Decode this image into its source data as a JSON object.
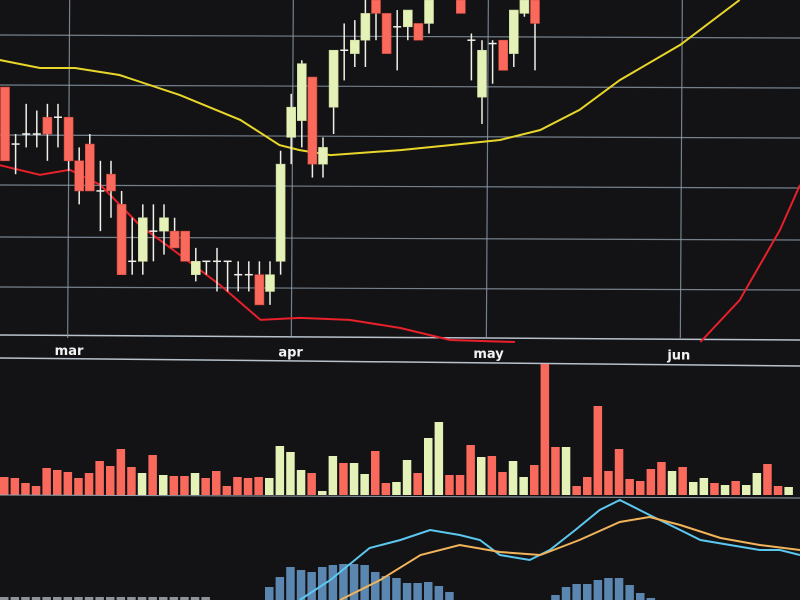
{
  "chart_data": [
    {
      "type": "candlestick",
      "panel": "price",
      "x_tick_labels": [
        {
          "label": "mar",
          "index": 6.1
        },
        {
          "label": "apr",
          "index": 27.2
        },
        {
          "label": "may",
          "index": 45.6
        },
        {
          "label": "jun",
          "index": 63.9
        }
      ],
      "ylim": [
        0,
        100
      ],
      "grid": true,
      "colors": {
        "up": "#e4f2b8",
        "down": "#f96a5c",
        "ma_slow": "#e8d62a",
        "ma_fast": "#e8202a",
        "grid": "#8d9caa",
        "background": "#131315"
      },
      "candles_ohlc": [
        [
          74,
          74,
          52,
          52
        ],
        [
          57,
          60,
          48,
          57
        ],
        [
          60,
          69,
          56,
          60
        ],
        [
          60,
          67,
          56,
          60
        ],
        [
          65,
          69,
          52,
          60
        ],
        [
          65,
          69,
          56,
          65
        ],
        [
          65,
          65,
          49,
          52
        ],
        [
          52,
          56,
          39,
          43
        ],
        [
          57,
          60,
          43,
          43
        ],
        [
          43,
          52,
          31,
          43
        ],
        [
          48,
          52,
          35,
          43
        ],
        [
          39,
          43,
          18,
          18
        ],
        [
          22,
          35,
          18,
          22
        ],
        [
          22,
          39,
          18,
          35
        ],
        [
          31,
          39,
          22,
          31
        ],
        [
          31,
          39,
          24,
          35
        ],
        [
          31,
          35,
          26,
          26
        ],
        [
          31,
          31,
          22,
          22
        ],
        [
          18,
          26,
          16,
          22
        ],
        [
          22,
          22,
          18,
          22
        ],
        [
          22,
          26,
          13,
          22
        ],
        [
          22,
          22,
          13,
          22
        ],
        [
          18,
          22,
          13,
          18
        ],
        [
          18,
          22,
          13,
          18
        ],
        [
          18,
          22,
          9,
          9
        ],
        [
          13,
          22,
          9,
          18
        ],
        [
          22,
          55,
          18,
          51
        ],
        [
          59,
          72,
          51,
          68
        ],
        [
          64,
          82,
          56,
          81
        ],
        [
          77,
          77,
          47,
          51
        ],
        [
          51,
          59,
          47,
          56
        ],
        [
          68,
          85,
          60,
          85
        ],
        [
          85,
          93,
          76,
          85
        ],
        [
          84,
          94,
          80,
          88
        ],
        [
          88,
          100,
          80,
          96
        ],
        [
          100,
          100,
          88,
          96
        ],
        [
          96,
          96,
          84,
          84
        ],
        [
          92,
          97,
          79,
          92
        ],
        [
          92,
          97,
          88,
          97
        ],
        [
          93,
          93,
          88,
          88
        ],
        [
          93,
          100,
          90,
          100
        ],
        [
          104,
          106,
          101,
          104
        ],
        [
          104,
          106,
          101,
          102
        ],
        [
          100,
          103,
          96,
          96
        ],
        [
          88,
          90,
          76,
          88
        ],
        [
          71,
          88,
          63,
          85
        ],
        [
          87,
          88,
          75,
          87
        ],
        [
          88,
          88,
          79,
          79
        ],
        [
          84,
          97,
          80,
          97
        ],
        [
          96,
          103,
          95,
          100
        ],
        [
          100,
          103,
          79,
          93
        ]
      ],
      "ma_slow": [
        [
          -0.5,
          82.1
        ],
        [
          3.3,
          79.7
        ],
        [
          6.6,
          79.7
        ],
        [
          10.8,
          77.6
        ],
        [
          16.5,
          71.6
        ],
        [
          22.2,
          64.2
        ],
        [
          25.9,
          56.7
        ],
        [
          27.8,
          55.2
        ],
        [
          30.7,
          53.7
        ],
        [
          37.3,
          55.2
        ],
        [
          42,
          56.7
        ],
        [
          46.7,
          58.2
        ],
        [
          50.5,
          61.2
        ],
        [
          54.2,
          67.2
        ],
        [
          58,
          76.1
        ],
        [
          63.7,
          86.6
        ],
        [
          69.3,
          100
        ]
      ],
      "ma_fast": [
        [
          [
            -0.5,
            50.7
          ],
          [
            3.3,
            47.8
          ],
          [
            6.1,
            49.3
          ],
          [
            9,
            44.8
          ],
          [
            12.7,
            32.8
          ],
          [
            16.5,
            23.9
          ],
          [
            20.3,
            14.9
          ],
          [
            24.1,
            4.5
          ],
          [
            27.8,
            5.1
          ],
          [
            32.5,
            4.5
          ],
          [
            37.3,
            2.1
          ],
          [
            42,
            -1.5
          ],
          [
            48.1,
            -2.1
          ]
        ],
        [
          [
            65.6,
            -2.1
          ],
          [
            69.3,
            10.4
          ],
          [
            73.1,
            31.3
          ],
          [
            75,
            44.8
          ]
        ]
      ]
    },
    {
      "type": "bar",
      "panel": "volume",
      "values": [
        180,
        170,
        120,
        90,
        270,
        250,
        230,
        170,
        220,
        340,
        290,
        460,
        280,
        220,
        400,
        200,
        190,
        190,
        220,
        170,
        240,
        90,
        180,
        170,
        180,
        170,
        490,
        430,
        250,
        220,
        40,
        390,
        320,
        320,
        210,
        440,
        120,
        130,
        350,
        220,
        570,
        730,
        200,
        200,
        500,
        380,
        390,
        230,
        340,
        180,
        300,
        1350,
        480,
        480,
        90,
        180,
        890,
        240,
        460,
        160,
        140,
        260,
        330,
        240,
        280,
        130,
        170,
        120,
        100,
        140,
        100,
        220,
        310,
        90,
        80
      ],
      "direction": "rrrrrrrrrrrrrgrgrrgrrrrrrggggrggrggrrggrggrrrgrrggrrrgrrrrrrrrrgrggrgrggrrg",
      "ylim": [
        0,
        1400
      ]
    },
    {
      "type": "line",
      "panel": "macd",
      "series": [
        {
          "color": "#5cc8f0",
          "points": [
            [
              27.8,
              0
            ],
            [
              30.7,
              2
            ],
            [
              34.4,
              5.2
            ],
            [
              37.3,
              6
            ],
            [
              40.1,
              7
            ],
            [
              42.9,
              6.5
            ],
            [
              44.8,
              6
            ],
            [
              46.7,
              4.5
            ],
            [
              49.5,
              4
            ],
            [
              51.4,
              5
            ],
            [
              53.8,
              7
            ],
            [
              56.1,
              9
            ],
            [
              58,
              10
            ],
            [
              60.8,
              8.5
            ],
            [
              63.7,
              7
            ],
            [
              65.6,
              6
            ],
            [
              68.4,
              5.5
            ],
            [
              71.2,
              5
            ],
            [
              73.1,
              5
            ],
            [
              75,
              4.5
            ]
          ]
        },
        {
          "color": "#f2b45a",
          "points": [
            [
              31.6,
              0
            ],
            [
              35.4,
              2
            ],
            [
              39.2,
              4.5
            ],
            [
              42.9,
              5.5
            ],
            [
              46.7,
              4.8
            ],
            [
              50.5,
              4.5
            ],
            [
              54.2,
              6
            ],
            [
              58,
              7.8
            ],
            [
              60.8,
              8.3
            ],
            [
              63.7,
              7.5
            ],
            [
              67.5,
              6.2
            ],
            [
              71.2,
              5.5
            ],
            [
              75,
              5
            ]
          ]
        }
      ],
      "histogram": [
        0.3,
        0.3,
        0.3,
        0.3,
        0.3,
        0.3,
        0.3,
        0.3,
        0.3,
        0.3,
        0.3,
        0.3,
        0.3,
        0.3,
        0.3,
        0.3,
        0.3,
        0.3,
        0.3,
        0.3,
        0,
        0,
        0,
        0,
        0,
        1.3,
        2.3,
        3.3,
        3.0,
        2.8,
        3.3,
        3.5,
        3.6,
        3.6,
        3.5,
        2.8,
        2.4,
        2.2,
        1.7,
        1.7,
        1.8,
        1.4,
        0.8,
        0,
        0,
        0,
        0,
        0,
        0,
        0,
        0,
        0,
        0.5,
        1.3,
        1.6,
        1.6,
        2.0,
        2.2,
        2.2,
        1.5,
        0.7,
        0.2,
        0,
        0,
        0,
        0,
        0,
        0,
        0,
        0,
        0,
        0,
        0,
        0,
        0
      ],
      "histogram_colors": {
        "neutral": "#8e9399",
        "positive": "#5a86b0"
      }
    }
  ]
}
